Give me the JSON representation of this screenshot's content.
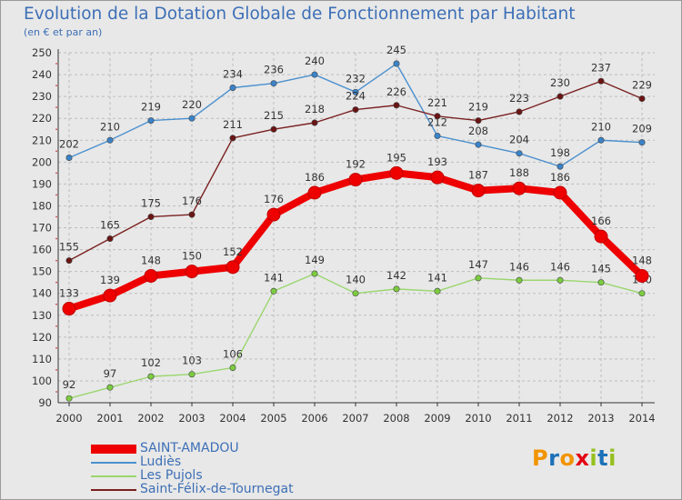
{
  "title": "Evolution de la Dotation Globale de Fonctionnement par Habitant",
  "subtitle": "(en € et par an)",
  "logo": {
    "text": "Proxiti",
    "letters": [
      "P",
      "r",
      "o",
      "x",
      "i",
      "t",
      "i"
    ],
    "colors": [
      "#f29400",
      "#1d71b8",
      "#f29400",
      "#e30613",
      "#95c11f",
      "#1d71b8",
      "#95c11f"
    ]
  },
  "chart_data": {
    "type": "line",
    "title": "Evolution de la Dotation Globale de Fonctionnement par Habitant",
    "subtitle": "(en € et par an)",
    "x": [
      "2000",
      "2001",
      "2002",
      "2003",
      "2004",
      "2005",
      "2006",
      "2007",
      "2008",
      "2009",
      "2010",
      "2011",
      "2012",
      "2013",
      "2014"
    ],
    "ylim": [
      90,
      250
    ],
    "yticks": [
      90,
      100,
      110,
      120,
      130,
      140,
      150,
      160,
      170,
      180,
      190,
      200,
      210,
      220,
      230,
      240,
      250
    ],
    "grid": true,
    "legend_position": "bottom-left",
    "series": [
      {
        "name": "Ludiès",
        "color": "#4a90cf",
        "marker_color": "#3a83c9",
        "values": [
          202,
          210,
          219,
          220,
          234,
          236,
          240,
          232,
          245,
          212,
          208,
          204,
          198,
          210,
          209
        ]
      },
      {
        "name": "Saint-Félix-de-Tournegat",
        "color": "#7a2020",
        "marker_color": "#6b1414",
        "values": [
          155,
          165,
          175,
          176,
          211,
          215,
          218,
          224,
          226,
          221,
          219,
          223,
          230,
          237,
          229
        ]
      },
      {
        "name": "Les Pujols",
        "color": "#9ad66e",
        "marker_color": "#7ccc40",
        "values": [
          92,
          97,
          102,
          103,
          106,
          141,
          149,
          140,
          142,
          141,
          147,
          146,
          146,
          145,
          140
        ]
      },
      {
        "name": "SAINT-AMADOU",
        "color": "#ee0000",
        "marker_color": "#ee0000",
        "values": [
          133,
          139,
          148,
          150,
          152,
          176,
          186,
          192,
          195,
          193,
          187,
          188,
          186,
          166,
          148
        ]
      }
    ],
    "legend_order": [
      "SAINT-AMADOU",
      "Ludiès",
      "Les Pujols",
      "Saint-Félix-de-Tournegat"
    ]
  }
}
